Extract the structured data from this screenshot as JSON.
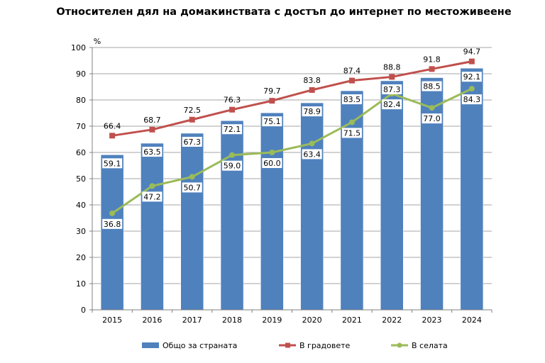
{
  "chart_data": {
    "type": "bar",
    "title": "Относителен дял на домакинствата с достъп до интернет по местоживеене",
    "ylabel": "%",
    "xlabel": "",
    "ylim": [
      0,
      100
    ],
    "yticks": [
      "0",
      "10",
      "20",
      "30",
      "40",
      "50",
      "60",
      "70",
      "80",
      "90",
      "100"
    ],
    "categories": [
      "2015",
      "2016",
      "2017",
      "2018",
      "2019",
      "2020",
      "2021",
      "2022",
      "2023",
      "2024"
    ],
    "grid": true,
    "legend_position": "bottom",
    "series": [
      {
        "name": "Общо за страната",
        "kind": "bar",
        "color": "#4f81bd",
        "values": [
          59.1,
          63.5,
          67.3,
          72.1,
          75.1,
          78.9,
          83.5,
          87.3,
          88.5,
          92.1
        ],
        "labels": [
          "59.1",
          "63.5",
          "67.3",
          "72.1",
          "75.1",
          "78.9",
          "83.5",
          "87.3",
          "88.5",
          "92.1"
        ]
      },
      {
        "name": "В градовете",
        "kind": "line",
        "color": "#c0504d",
        "marker": "square",
        "values": [
          66.4,
          68.7,
          72.5,
          76.3,
          79.7,
          83.8,
          87.4,
          88.8,
          91.8,
          94.7
        ],
        "labels": [
          "66.4",
          "68.7",
          "72.5",
          "76.3",
          "79.7",
          "83.8",
          "87.4",
          "88.8",
          "91.8",
          "94.7"
        ]
      },
      {
        "name": "В селата",
        "kind": "line",
        "color": "#9bbb59",
        "marker": "circle",
        "values": [
          36.8,
          47.2,
          50.7,
          59.0,
          60.0,
          63.4,
          71.5,
          82.4,
          77.0,
          84.3
        ],
        "labels": [
          "36.8",
          "47.2",
          "50.7",
          "59.0",
          "60.0",
          "63.4",
          "71.5",
          "82.4",
          "77.0",
          "84.3"
        ]
      }
    ]
  }
}
